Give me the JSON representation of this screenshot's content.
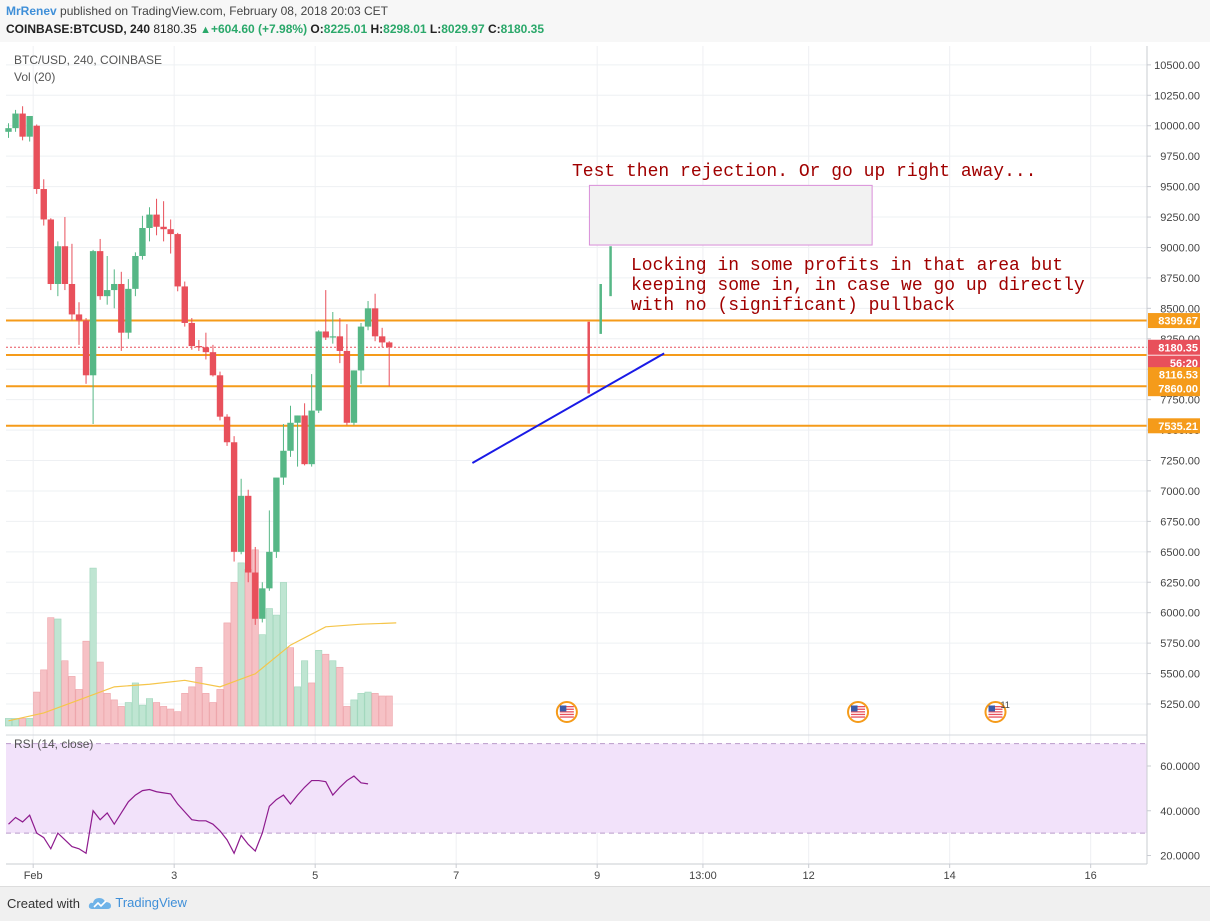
{
  "header": {
    "author": "MrRenev",
    "published_text": "published on TradingView.com, February 08, 2018 20:03 CET",
    "symbol_line": "COINBASE:BTCUSD, 240",
    "last_value": "8180.35",
    "change_text": "+604.60 (+7.98%)",
    "o_label": "O:",
    "o_value": "8225.01",
    "h_label": "H:",
    "h_value": "8298.01",
    "l_label": "L:",
    "l_value": "8029.97",
    "c_label": "C:",
    "c_value": "8180.35"
  },
  "pane_labels": {
    "main": "BTC/USD, 240, COINBASE",
    "volume": "Vol (20)",
    "rsi": "RSI (14, close)"
  },
  "footer": {
    "created_with": "Created with",
    "brand": "TradingView"
  },
  "colors": {
    "up": "#56b786",
    "down": "#e8505b",
    "vol_up": "#bfe5d2",
    "vol_down": "#f6c1c5",
    "horizontal_line": "#f59b1a",
    "trendline": "#1a1ae6",
    "annotation_text": "#a00000",
    "rsi_line": "#8e1b8e",
    "rsi_band": "#f2e2fa",
    "vol_ma": "#f5c54a"
  },
  "chart_data": {
    "type": "candlestick",
    "timeframe": "240",
    "y_axis_ticks": [
      "10500.00",
      "10250.00",
      "10000.00",
      "9750.00",
      "9500.00",
      "9250.00",
      "9000.00",
      "8750.00",
      "8500.00",
      "8250.00",
      "8000.00",
      "7750.00",
      "7500.00",
      "7250.00",
      "7000.00",
      "6750.00",
      "6500.00",
      "6250.00",
      "6000.00",
      "5750.00",
      "5500.00",
      "5250.00"
    ],
    "ylim": [
      5100,
      10600
    ],
    "x_axis_ticks": [
      {
        "label": "Feb",
        "bar": 3.5
      },
      {
        "label": "3",
        "bar": 23.5
      },
      {
        "label": "5",
        "bar": 43.5
      },
      {
        "label": "7",
        "bar": 63.5
      },
      {
        "label": "9",
        "bar": 83.5
      },
      {
        "label": "13:00",
        "bar": 98.5
      },
      {
        "label": "12",
        "bar": 113.5
      },
      {
        "label": "14",
        "bar": 133.5
      },
      {
        "label": "16",
        "bar": 153.5
      }
    ],
    "candles": [
      {
        "o": 9950,
        "h": 10020,
        "l": 9900,
        "c": 9980
      },
      {
        "o": 9980,
        "h": 10130,
        "l": 9950,
        "c": 10100
      },
      {
        "o": 10100,
        "h": 10160,
        "l": 9880,
        "c": 9910
      },
      {
        "o": 9910,
        "h": 10080,
        "l": 9870,
        "c": 10080
      },
      {
        "o": 10000,
        "h": 10010,
        "l": 9440,
        "c": 9480
      },
      {
        "o": 9480,
        "h": 9560,
        "l": 9180,
        "c": 9230
      },
      {
        "o": 9230,
        "h": 9240,
        "l": 8650,
        "c": 8700
      },
      {
        "o": 8700,
        "h": 9050,
        "l": 8600,
        "c": 9010
      },
      {
        "o": 9010,
        "h": 9250,
        "l": 8650,
        "c": 8700
      },
      {
        "o": 8700,
        "h": 9030,
        "l": 8400,
        "c": 8450
      },
      {
        "o": 8450,
        "h": 8550,
        "l": 8200,
        "c": 8400
      },
      {
        "o": 8400,
        "h": 8420,
        "l": 7880,
        "c": 7950
      },
      {
        "o": 7950,
        "h": 8980,
        "l": 7550,
        "c": 8970
      },
      {
        "o": 8970,
        "h": 9070,
        "l": 8570,
        "c": 8600
      },
      {
        "o": 8600,
        "h": 8930,
        "l": 8530,
        "c": 8650
      },
      {
        "o": 8650,
        "h": 8820,
        "l": 8500,
        "c": 8700
      },
      {
        "o": 8700,
        "h": 8800,
        "l": 8150,
        "c": 8300
      },
      {
        "o": 8300,
        "h": 8740,
        "l": 8250,
        "c": 8660
      },
      {
        "o": 8660,
        "h": 8960,
        "l": 8600,
        "c": 8930
      },
      {
        "o": 8930,
        "h": 9260,
        "l": 8900,
        "c": 9160
      },
      {
        "o": 9160,
        "h": 9330,
        "l": 9050,
        "c": 9270
      },
      {
        "o": 9270,
        "h": 9400,
        "l": 9100,
        "c": 9170
      },
      {
        "o": 9170,
        "h": 9380,
        "l": 9050,
        "c": 9150
      },
      {
        "o": 9150,
        "h": 9230,
        "l": 8950,
        "c": 9110
      },
      {
        "o": 9110,
        "h": 9120,
        "l": 8640,
        "c": 8680
      },
      {
        "o": 8680,
        "h": 8720,
        "l": 8350,
        "c": 8380
      },
      {
        "o": 8380,
        "h": 8420,
        "l": 8160,
        "c": 8190
      },
      {
        "o": 8190,
        "h": 8240,
        "l": 8150,
        "c": 8180
      },
      {
        "o": 8180,
        "h": 8300,
        "l": 8080,
        "c": 8140
      },
      {
        "o": 8140,
        "h": 8200,
        "l": 7940,
        "c": 7950
      },
      {
        "o": 7950,
        "h": 7980,
        "l": 7580,
        "c": 7610
      },
      {
        "o": 7610,
        "h": 7630,
        "l": 7370,
        "c": 7400
      },
      {
        "o": 7400,
        "h": 7450,
        "l": 6420,
        "c": 6500
      },
      {
        "o": 6500,
        "h": 7100,
        "l": 6480,
        "c": 6960
      },
      {
        "o": 6960,
        "h": 7010,
        "l": 6250,
        "c": 6330
      },
      {
        "o": 6330,
        "h": 6540,
        "l": 5900,
        "c": 5950
      },
      {
        "o": 5950,
        "h": 6250,
        "l": 5920,
        "c": 6200
      },
      {
        "o": 6200,
        "h": 6840,
        "l": 6180,
        "c": 6500
      },
      {
        "o": 6500,
        "h": 7100,
        "l": 6450,
        "c": 7110
      },
      {
        "o": 7110,
        "h": 7550,
        "l": 7050,
        "c": 7330
      },
      {
        "o": 7330,
        "h": 7700,
        "l": 7280,
        "c": 7560
      },
      {
        "o": 7560,
        "h": 7620,
        "l": 7200,
        "c": 7620
      },
      {
        "o": 7620,
        "h": 7720,
        "l": 7210,
        "c": 7220
      },
      {
        "o": 7220,
        "h": 7960,
        "l": 7200,
        "c": 7660
      },
      {
        "o": 7660,
        "h": 8320,
        "l": 7640,
        "c": 8310
      },
      {
        "o": 8310,
        "h": 8650,
        "l": 8240,
        "c": 8260
      },
      {
        "o": 8260,
        "h": 8470,
        "l": 8210,
        "c": 8270
      },
      {
        "o": 8270,
        "h": 8420,
        "l": 8050,
        "c": 8150
      },
      {
        "o": 8150,
        "h": 8370,
        "l": 7540,
        "c": 7560
      },
      {
        "o": 7560,
        "h": 7990,
        "l": 7540,
        "c": 7990
      },
      {
        "o": 7990,
        "h": 8380,
        "l": 7880,
        "c": 8350
      },
      {
        "o": 8350,
        "h": 8560,
        "l": 8320,
        "c": 8500
      },
      {
        "o": 8500,
        "h": 8620,
        "l": 8230,
        "c": 8270
      },
      {
        "o": 8270,
        "h": 8340,
        "l": 8180,
        "c": 8220
      },
      {
        "o": 8220,
        "h": 8230,
        "l": 7860,
        "c": 8180
      }
    ],
    "volume": [
      {
        "v": 58,
        "up": true
      },
      {
        "v": 58,
        "up": true
      },
      {
        "v": 58,
        "up": false
      },
      {
        "v": 58,
        "up": true
      },
      {
        "v": 260,
        "up": false
      },
      {
        "v": 430,
        "up": false
      },
      {
        "v": 830,
        "up": false
      },
      {
        "v": 820,
        "up": true
      },
      {
        "v": 500,
        "up": false
      },
      {
        "v": 380,
        "up": false
      },
      {
        "v": 280,
        "up": false
      },
      {
        "v": 650,
        "up": false
      },
      {
        "v": 1210,
        "up": true
      },
      {
        "v": 490,
        "up": false
      },
      {
        "v": 250,
        "up": false
      },
      {
        "v": 200,
        "up": false
      },
      {
        "v": 150,
        "up": false
      },
      {
        "v": 180,
        "up": true
      },
      {
        "v": 330,
        "up": true
      },
      {
        "v": 160,
        "up": true
      },
      {
        "v": 210,
        "up": true
      },
      {
        "v": 180,
        "up": false
      },
      {
        "v": 150,
        "up": false
      },
      {
        "v": 130,
        "up": false
      },
      {
        "v": 110,
        "up": false
      },
      {
        "v": 250,
        "up": false
      },
      {
        "v": 300,
        "up": false
      },
      {
        "v": 450,
        "up": false
      },
      {
        "v": 250,
        "up": false
      },
      {
        "v": 180,
        "up": false
      },
      {
        "v": 280,
        "up": false
      },
      {
        "v": 790,
        "up": false
      },
      {
        "v": 1100,
        "up": false
      },
      {
        "v": 1250,
        "up": true
      },
      {
        "v": 1200,
        "up": false
      },
      {
        "v": 1350,
        "up": false
      },
      {
        "v": 700,
        "up": true
      },
      {
        "v": 900,
        "up": true
      },
      {
        "v": 850,
        "up": true
      },
      {
        "v": 1100,
        "up": true
      },
      {
        "v": 600,
        "up": false
      },
      {
        "v": 300,
        "up": true
      },
      {
        "v": 500,
        "up": true
      },
      {
        "v": 330,
        "up": false
      },
      {
        "v": 580,
        "up": true
      },
      {
        "v": 550,
        "up": false
      },
      {
        "v": 500,
        "up": true
      },
      {
        "v": 450,
        "up": false
      },
      {
        "v": 150,
        "up": false
      },
      {
        "v": 200,
        "up": true
      },
      {
        "v": 250,
        "up": true
      },
      {
        "v": 260,
        "up": true
      },
      {
        "v": 250,
        "up": false
      },
      {
        "v": 230,
        "up": false
      },
      {
        "v": 230,
        "up": false
      }
    ],
    "volume_ma": [
      {
        "bar": 0,
        "v": 40
      },
      {
        "bar": 5,
        "v": 100
      },
      {
        "bar": 10,
        "v": 200
      },
      {
        "bar": 15,
        "v": 300
      },
      {
        "bar": 20,
        "v": 320
      },
      {
        "bar": 25,
        "v": 350
      },
      {
        "bar": 30,
        "v": 300
      },
      {
        "bar": 35,
        "v": 400
      },
      {
        "bar": 40,
        "v": 620
      },
      {
        "bar": 45,
        "v": 760
      },
      {
        "bar": 50,
        "v": 780
      },
      {
        "bar": 55,
        "v": 790
      }
    ],
    "rsi": [
      {
        "bar": 0,
        "v": 34
      },
      {
        "bar": 1,
        "v": 37
      },
      {
        "bar": 2,
        "v": 35
      },
      {
        "bar": 3,
        "v": 38
      },
      {
        "bar": 4,
        "v": 30
      },
      {
        "bar": 5,
        "v": 28
      },
      {
        "bar": 6,
        "v": 23
      },
      {
        "bar": 7,
        "v": 30
      },
      {
        "bar": 8,
        "v": 27
      },
      {
        "bar": 9,
        "v": 24
      },
      {
        "bar": 10,
        "v": 23
      },
      {
        "bar": 11,
        "v": 21
      },
      {
        "bar": 12,
        "v": 40
      },
      {
        "bar": 13,
        "v": 36
      },
      {
        "bar": 14,
        "v": 39
      },
      {
        "bar": 15,
        "v": 34
      },
      {
        "bar": 16,
        "v": 39
      },
      {
        "bar": 17,
        "v": 44
      },
      {
        "bar": 18,
        "v": 47
      },
      {
        "bar": 19,
        "v": 49
      },
      {
        "bar": 20,
        "v": 49.5
      },
      {
        "bar": 21,
        "v": 48.5
      },
      {
        "bar": 22,
        "v": 48
      },
      {
        "bar": 23,
        "v": 47.5
      },
      {
        "bar": 24,
        "v": 43
      },
      {
        "bar": 25,
        "v": 39.5
      },
      {
        "bar": 26,
        "v": 36
      },
      {
        "bar": 27,
        "v": 35.5
      },
      {
        "bar": 28,
        "v": 35.5
      },
      {
        "bar": 29,
        "v": 34
      },
      {
        "bar": 30,
        "v": 31
      },
      {
        "bar": 31,
        "v": 27
      },
      {
        "bar": 32,
        "v": 21
      },
      {
        "bar": 33,
        "v": 29
      },
      {
        "bar": 34,
        "v": 25
      },
      {
        "bar": 35,
        "v": 22
      },
      {
        "bar": 36,
        "v": 30
      },
      {
        "bar": 37,
        "v": 42
      },
      {
        "bar": 38,
        "v": 45
      },
      {
        "bar": 39,
        "v": 47
      },
      {
        "bar": 40,
        "v": 43
      },
      {
        "bar": 41,
        "v": 47
      },
      {
        "bar": 42,
        "v": 50.5
      },
      {
        "bar": 43,
        "v": 53.5
      },
      {
        "bar": 44,
        "v": 53.5
      },
      {
        "bar": 45,
        "v": 53
      },
      {
        "bar": 46,
        "v": 47
      },
      {
        "bar": 47,
        "v": 50.5
      },
      {
        "bar": 48,
        "v": 53.5
      },
      {
        "bar": 49,
        "v": 55.5
      },
      {
        "bar": 50,
        "v": 52.5
      },
      {
        "bar": 51,
        "v": 52
      }
    ],
    "rsi_axis_ticks": [
      "60.0000",
      "40.0000",
      "20.0000"
    ],
    "rsi_ylim": [
      18,
      76
    ],
    "rsi_band": [
      30,
      70
    ],
    "horizontal_levels": [
      8399.67,
      8116.53,
      7860.0,
      7535.21
    ],
    "price_tags": [
      {
        "label": "8399.67",
        "value": 8399.67,
        "color": "#f59b1a"
      },
      {
        "label": "8180.35",
        "value": 8180.35,
        "color": "#e8505b"
      },
      {
        "label": "56:20",
        "value": 8050,
        "color": "#e8505b"
      },
      {
        "label": "8116.53",
        "value": 7955,
        "color": "#f59b1a"
      },
      {
        "label": "7860.00",
        "value": 7840,
        "color": "#f59b1a"
      },
      {
        "label": "7535.21",
        "value": 7535.21,
        "color": "#f59b1a"
      }
    ],
    "current_price": 8180.35,
    "trendline": [
      {
        "bar": 65.8,
        "value": 7230
      },
      {
        "bar": 93,
        "value": 8130
      }
    ],
    "scenario_bars": [
      {
        "bar": 82.3,
        "from": 7800,
        "to": 8390
      },
      {
        "bar": 84,
        "from": 8290,
        "to": 8700
      },
      {
        "bar": 85.4,
        "from": 8600,
        "to": 9010
      }
    ],
    "target_box": {
      "bar_start": 82.4,
      "bar_end": 122.5,
      "from": 9020,
      "to": 9510
    },
    "annotations": [
      "Test then rejection. Or go up right away...",
      "Locking in some profits in that area but",
      "keeping some in, in case we go up directly",
      "with no (significant) pullback"
    ],
    "event_badges": [
      {
        "bar": 79.2,
        "count": ""
      },
      {
        "bar": 120.5,
        "count": ""
      },
      {
        "bar": 140,
        "count": "11"
      }
    ]
  }
}
